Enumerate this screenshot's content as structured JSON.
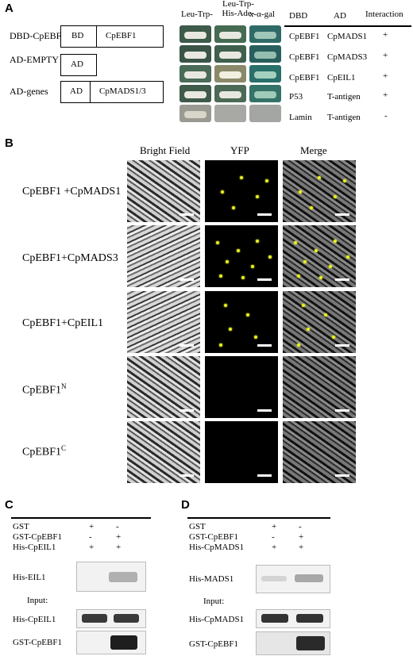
{
  "panels": {
    "a": "A",
    "b": "B",
    "c": "C",
    "d": "D"
  },
  "panel_a": {
    "constructs": [
      {
        "label": "DBD-CpEBF1",
        "parts": [
          "BD",
          "CpEBF1"
        ]
      },
      {
        "label": "AD-EMPTY",
        "parts": [
          "AD"
        ]
      },
      {
        "label": "AD-genes",
        "parts": [
          "AD",
          "CpMADS1/3"
        ]
      }
    ],
    "media": {
      "col1": "Leu-Trp-",
      "col2_line1": "Leu-Trp-",
      "col2_line2": "His-Ade-",
      "col3": "x-α-gal"
    },
    "table": {
      "headers": [
        "DBD",
        "AD",
        "Interaction"
      ],
      "rows": [
        [
          "CpEBF1",
          "CpMADS1",
          "+"
        ],
        [
          "CpEBF1",
          "CpMADS3",
          "+"
        ],
        [
          "CpEBF1",
          "CpEIL1",
          "+"
        ],
        [
          "P53",
          "T-antigen",
          "+"
        ],
        [
          "Lamin",
          "T-antigen",
          "-"
        ]
      ]
    }
  },
  "panel_b": {
    "columns": [
      "Bright Field",
      "YFP",
      "Merge"
    ],
    "rows": [
      {
        "label": "CpEBF1 +CpMADS1"
      },
      {
        "label": "CpEBF1+CpMADS3"
      },
      {
        "label": "CpEBF1+CpEIL1"
      },
      {
        "label": "CpEBF1",
        "sup": "N"
      },
      {
        "label": "CpEBF1",
        "sup": "C"
      }
    ]
  },
  "panel_c": {
    "conditions": [
      {
        "label": "GST",
        "lane1": "+",
        "lane2": "-"
      },
      {
        "label": "GST-CpEBF1",
        "lane1": "-",
        "lane2": "+"
      },
      {
        "label": "His-CpEIL1",
        "lane1": "+",
        "lane2": "+"
      }
    ],
    "blots": {
      "pulldown": "His-EIL1",
      "input": "Input:",
      "input1": "His-CpEIL1",
      "input2": "GST-CpEBF1"
    }
  },
  "panel_d": {
    "conditions": [
      {
        "label": "GST",
        "lane1": "+",
        "lane2": "-"
      },
      {
        "label": "GST-CpEBF1",
        "lane1": "-",
        "lane2": "+"
      },
      {
        "label": "His-CpMADS1",
        "lane1": "+",
        "lane2": "+"
      }
    ],
    "blots": {
      "pulldown": "His-MADS1",
      "input": "Input:",
      "input1": "His-CpMADS1",
      "input2": "GST-CpEBF1"
    }
  }
}
